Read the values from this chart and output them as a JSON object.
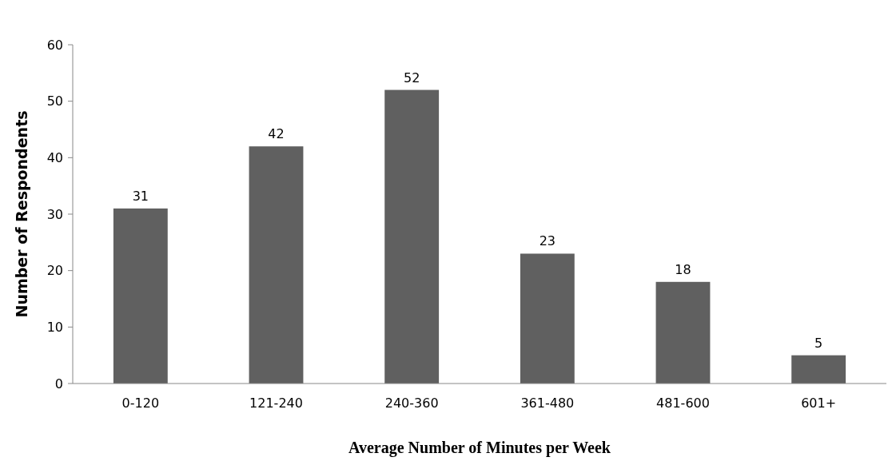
{
  "chart_data": {
    "type": "bar",
    "xlabel": "Average Number of Minutes per Week",
    "ylabel": "Number of Respondents",
    "categories": [
      "0-120",
      "121-240",
      "240-360",
      "361-480",
      "481-600",
      "601+"
    ],
    "values": [
      31,
      42,
      52,
      23,
      18,
      5
    ],
    "color": "#606060",
    "ylim": [
      0,
      60
    ],
    "yticks": [
      0,
      10,
      20,
      30,
      40,
      50,
      60
    ],
    "data_labels": true
  }
}
